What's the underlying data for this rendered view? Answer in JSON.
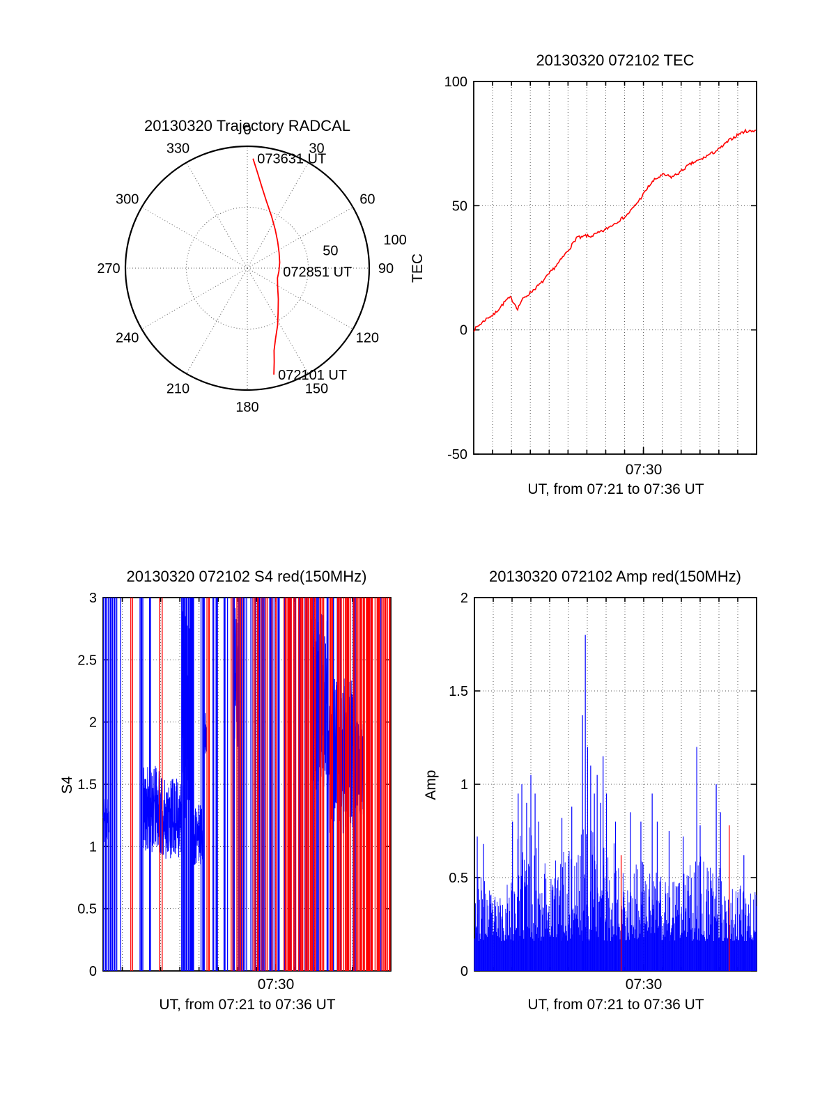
{
  "page": {
    "background": "#ffffff"
  },
  "chart_data": [
    {
      "id": "trajectory",
      "type": "line",
      "subtype": "polar",
      "title": "20130320 Trajectory RADCAL",
      "azimuth_tick_labels": [
        "0",
        "30",
        "60",
        "90",
        "120",
        "150",
        "180",
        "210",
        "240",
        "270",
        "300",
        "330"
      ],
      "radial_tick_labels": [
        "50",
        "100"
      ],
      "radial_max": 100,
      "grid_circle_radii": [
        50,
        100
      ],
      "line_color": "#ff0000",
      "trajectory_points_az_r": [
        [
          166,
          90
        ],
        [
          164,
          80
        ],
        [
          162,
          71
        ],
        [
          158,
          62
        ],
        [
          152,
          53
        ],
        [
          145,
          44
        ],
        [
          135,
          36
        ],
        [
          121,
          29
        ],
        [
          108,
          26
        ],
        [
          96,
          26
        ],
        [
          80,
          27
        ],
        [
          64,
          29
        ],
        [
          49,
          33
        ],
        [
          36,
          39
        ],
        [
          25,
          47
        ],
        [
          16,
          57
        ],
        [
          10,
          68
        ],
        [
          6,
          79
        ],
        [
          3,
          90
        ]
      ],
      "annotations": [
        {
          "label": "073631 UT",
          "az": 3,
          "r": 90
        },
        {
          "label": "072851 UT",
          "az": 96,
          "r": 26
        },
        {
          "label": "072101 UT",
          "az": 166,
          "r": 90
        }
      ]
    },
    {
      "id": "tec",
      "type": "line",
      "title": "20130320 072102 TEC",
      "ylabel": "TEC",
      "xlabel": "UT, from 07:21 to 07:36 UT",
      "xtick_label": "07:30",
      "xtick_frac": 0.6,
      "x_minor_divisions": 15,
      "ylim": [
        -50,
        100
      ],
      "ytick_values": [
        -50,
        0,
        50,
        100
      ],
      "ytick_labels": [
        "-50",
        "0",
        "50",
        "100"
      ],
      "ygrid_values": [
        0,
        50
      ],
      "line_color": "#ff0000",
      "points": [
        [
          0,
          0
        ],
        [
          0.02,
          2
        ],
        [
          0.05,
          5
        ],
        [
          0.07,
          6
        ],
        [
          0.1,
          10
        ],
        [
          0.115,
          12
        ],
        [
          0.13,
          13
        ],
        [
          0.145,
          10.5
        ],
        [
          0.155,
          8.5
        ],
        [
          0.17,
          12
        ],
        [
          0.19,
          14
        ],
        [
          0.21,
          16
        ],
        [
          0.24,
          19
        ],
        [
          0.27,
          23
        ],
        [
          0.3,
          27
        ],
        [
          0.32,
          30
        ],
        [
          0.34,
          33
        ],
        [
          0.355,
          35.5
        ],
        [
          0.365,
          37.5
        ],
        [
          0.38,
          37
        ],
        [
          0.395,
          38
        ],
        [
          0.41,
          37.5
        ],
        [
          0.43,
          38.5
        ],
        [
          0.46,
          40
        ],
        [
          0.48,
          41.5
        ],
        [
          0.5,
          43
        ],
        [
          0.52,
          44.5
        ],
        [
          0.54,
          46
        ],
        [
          0.555,
          48
        ],
        [
          0.57,
          50
        ],
        [
          0.59,
          53
        ],
        [
          0.605,
          55.5
        ],
        [
          0.62,
          58
        ],
        [
          0.64,
          60.5
        ],
        [
          0.655,
          61.5
        ],
        [
          0.67,
          62.5
        ],
        [
          0.685,
          62
        ],
        [
          0.7,
          61.5
        ],
        [
          0.715,
          62.5
        ],
        [
          0.73,
          63.5
        ],
        [
          0.75,
          65.5
        ],
        [
          0.77,
          67
        ],
        [
          0.79,
          68
        ],
        [
          0.81,
          69
        ],
        [
          0.83,
          70.5
        ],
        [
          0.85,
          71.5
        ],
        [
          0.87,
          73
        ],
        [
          0.89,
          75
        ],
        [
          0.905,
          76.5
        ],
        [
          0.92,
          77.5
        ],
        [
          0.94,
          79
        ],
        [
          0.96,
          80
        ],
        [
          0.98,
          80
        ],
        [
          1.0,
          80.5
        ]
      ]
    },
    {
      "id": "s4",
      "type": "bar",
      "subtype": "spike-series",
      "title": "20130320 072102 S4 red(150MHz)",
      "ylabel": "S4",
      "xlabel": "UT, from 07:21 to 07:36 UT",
      "xtick_label": "07:30",
      "xtick_frac": 0.6,
      "x_minor_divisions": 15,
      "ylim": [
        0,
        3
      ],
      "ytick_values": [
        0,
        0.5,
        1,
        1.5,
        2,
        2.5,
        3
      ],
      "ytick_labels": [
        "0",
        "0.5",
        "1",
        "1.5",
        "2",
        "2.5",
        "3"
      ],
      "ygrid_values": [
        0.5,
        1,
        1.5,
        2,
        2.5
      ],
      "colors": {
        "primary": "#0000ff",
        "secondary": "#ff0000"
      },
      "full_spike_value": 3,
      "spike_regions": [
        {
          "color": "#0000ff",
          "x0": 0.002,
          "x1": 0.048,
          "count": 16
        },
        {
          "color": "#0000ff",
          "x0": 0.058,
          "x1": 0.062,
          "count": 1
        },
        {
          "color": "#ff0000",
          "x0": 0.096,
          "x1": 0.104,
          "count": 2
        },
        {
          "color": "#0000ff",
          "x0": 0.118,
          "x1": 0.142,
          "count": 5
        },
        {
          "color": "#0000ff",
          "x0": 0.157,
          "x1": 0.166,
          "count": 2
        },
        {
          "color": "#ff0000",
          "x0": 0.196,
          "x1": 0.206,
          "count": 2
        },
        {
          "color": "#0000ff",
          "x0": 0.272,
          "x1": 0.315,
          "count": 24
        },
        {
          "color": "#0000ff",
          "x0": 0.332,
          "x1": 0.352,
          "count": 4
        },
        {
          "color": "#ff0000",
          "x0": 0.356,
          "x1": 0.372,
          "count": 3
        },
        {
          "color": "#0000ff",
          "x0": 0.376,
          "x1": 0.402,
          "count": 5
        },
        {
          "color": "#0000ff",
          "x0": 0.412,
          "x1": 0.5,
          "count": 16
        },
        {
          "color": "#ff0000",
          "x0": 0.432,
          "x1": 0.5,
          "count": 7
        },
        {
          "color": "#0000ff",
          "x0": 0.5,
          "x1": 0.6,
          "count": 20
        },
        {
          "color": "#ff0000",
          "x0": 0.505,
          "x1": 0.6,
          "count": 12
        },
        {
          "color": "#0000ff",
          "x0": 0.6,
          "x1": 0.7,
          "count": 14
        },
        {
          "color": "#ff0000",
          "x0": 0.6,
          "x1": 0.7,
          "count": 24
        },
        {
          "color": "#0000ff",
          "x0": 0.7,
          "x1": 0.8,
          "count": 11
        },
        {
          "color": "#ff0000",
          "x0": 0.7,
          "x1": 0.8,
          "count": 26
        },
        {
          "color": "#0000ff",
          "x0": 0.8,
          "x1": 0.88,
          "count": 9
        },
        {
          "color": "#ff0000",
          "x0": 0.8,
          "x1": 0.92,
          "count": 32
        },
        {
          "color": "#0000ff",
          "x0": 0.93,
          "x1": 0.97,
          "count": 3
        },
        {
          "color": "#ff0000",
          "x0": 0.92,
          "x1": 0.999,
          "count": 30
        }
      ],
      "noise_traces": [
        {
          "x0": 0.0,
          "x1": 0.02,
          "vmin": 1.0,
          "vmax": 1.45,
          "n": 30
        },
        {
          "x0": 0.14,
          "x1": 0.2,
          "vmin": 0.95,
          "vmax": 1.65,
          "n": 110
        },
        {
          "x0": 0.2,
          "x1": 0.275,
          "vmin": 0.9,
          "vmax": 1.55,
          "n": 140
        },
        {
          "x0": 0.275,
          "x1": 0.315,
          "vmin": 1.2,
          "vmax": 2.95,
          "n": 80
        },
        {
          "x0": 0.315,
          "x1": 0.345,
          "vmin": 0.85,
          "vmax": 1.35,
          "n": 60
        },
        {
          "x0": 0.35,
          "x1": 0.36,
          "vmin": 1.7,
          "vmax": 2.1,
          "n": 20
        },
        {
          "x0": 0.455,
          "x1": 0.475,
          "vmin": 1.8,
          "vmax": 2.95,
          "n": 40
        },
        {
          "x0": 0.72,
          "x1": 0.78,
          "vmin": 1.45,
          "vmax": 2.9,
          "n": 120
        },
        {
          "x0": 0.78,
          "x1": 0.87,
          "vmin": 1.1,
          "vmax": 2.35,
          "n": 170
        },
        {
          "x0": 0.87,
          "x1": 0.905,
          "vmin": 1.25,
          "vmax": 2.0,
          "n": 60
        }
      ]
    },
    {
      "id": "amp",
      "type": "bar",
      "subtype": "spike-series",
      "title": "20130320 072102 Amp red(150MHz)",
      "ylabel": "Amp",
      "xlabel": "UT, from 07:21 to 07:36 UT",
      "xtick_label": "07:30",
      "xtick_frac": 0.6,
      "x_minor_divisions": 15,
      "ylim": [
        0,
        2
      ],
      "ytick_values": [
        0,
        0.5,
        1,
        1.5,
        2
      ],
      "ytick_labels": [
        "0",
        "0.5",
        "1",
        "1.5",
        "2"
      ],
      "ygrid_values": [
        0.5,
        1,
        1.5
      ],
      "colors": {
        "primary": "#0000ff",
        "secondary": "#ff0000"
      },
      "noise_floor": 0.16,
      "columns": 560,
      "envelope": [
        [
          0,
          0.55
        ],
        [
          0.04,
          0.48
        ],
        [
          0.08,
          0.4
        ],
        [
          0.12,
          0.5
        ],
        [
          0.16,
          0.75
        ],
        [
          0.2,
          0.8
        ],
        [
          0.24,
          0.65
        ],
        [
          0.28,
          0.58
        ],
        [
          0.32,
          0.68
        ],
        [
          0.36,
          0.7
        ],
        [
          0.4,
          0.85
        ],
        [
          0.44,
          0.72
        ],
        [
          0.48,
          0.78
        ],
        [
          0.52,
          0.58
        ],
        [
          0.56,
          0.56
        ],
        [
          0.6,
          0.6
        ],
        [
          0.64,
          0.62
        ],
        [
          0.68,
          0.5
        ],
        [
          0.72,
          0.48
        ],
        [
          0.76,
          0.58
        ],
        [
          0.8,
          0.62
        ],
        [
          0.84,
          0.55
        ],
        [
          0.88,
          0.58
        ],
        [
          0.92,
          0.48
        ],
        [
          0.96,
          0.44
        ],
        [
          1.0,
          0.44
        ]
      ],
      "peaks": [
        [
          0.01,
          0.72
        ],
        [
          0.032,
          0.68
        ],
        [
          0.135,
          0.8
        ],
        [
          0.155,
          0.95
        ],
        [
          0.168,
          1.0
        ],
        [
          0.185,
          0.9
        ],
        [
          0.2,
          1.05
        ],
        [
          0.215,
          0.95
        ],
        [
          0.228,
          0.8
        ],
        [
          0.31,
          0.82
        ],
        [
          0.345,
          0.88
        ],
        [
          0.383,
          1.37
        ],
        [
          0.393,
          1.8
        ],
        [
          0.401,
          1.2
        ],
        [
          0.412,
          1.1
        ],
        [
          0.425,
          0.95
        ],
        [
          0.435,
          1.05
        ],
        [
          0.447,
          0.9
        ],
        [
          0.456,
          1.15
        ],
        [
          0.468,
          0.95
        ],
        [
          0.5,
          0.8
        ],
        [
          0.553,
          0.85
        ],
        [
          0.59,
          0.8
        ],
        [
          0.63,
          0.95
        ],
        [
          0.648,
          0.8
        ],
        [
          0.69,
          0.75
        ],
        [
          0.74,
          0.72
        ],
        [
          0.788,
          1.2
        ],
        [
          0.8,
          0.78
        ],
        [
          0.857,
          1.0
        ],
        [
          0.872,
          0.85
        ],
        [
          0.955,
          0.62
        ]
      ],
      "red_spikes": [
        [
          0.52,
          0.62
        ],
        [
          0.903,
          0.78
        ]
      ]
    }
  ]
}
